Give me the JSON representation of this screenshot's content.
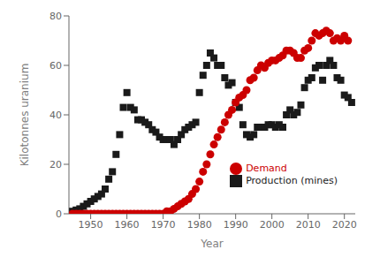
{
  "chart_data": {
    "type": "scatter",
    "xlabel": "Year",
    "ylabel": "Kilotonnes uranium",
    "xlim": [
      1944,
      2023
    ],
    "ylim": [
      0,
      80
    ],
    "xticks": [
      1950,
      1960,
      1970,
      1980,
      1990,
      2000,
      2010,
      2020
    ],
    "yticks": [
      0,
      20,
      40,
      60,
      80
    ],
    "grid": false,
    "legend": "lower right",
    "series": [
      {
        "name": "Production (mines)",
        "color": "#1a1a1a",
        "marker": "square",
        "x": [
          1945,
          1946,
          1947,
          1948,
          1949,
          1950,
          1951,
          1952,
          1953,
          1954,
          1955,
          1956,
          1957,
          1958,
          1959,
          1960,
          1961,
          1962,
          1963,
          1964,
          1965,
          1966,
          1967,
          1968,
          1969,
          1970,
          1971,
          1972,
          1973,
          1974,
          1975,
          1976,
          1977,
          1978,
          1979,
          1980,
          1981,
          1982,
          1983,
          1984,
          1985,
          1986,
          1987,
          1988,
          1989,
          1990,
          1991,
          1992,
          1993,
          1994,
          1995,
          1996,
          1997,
          1998,
          1999,
          2000,
          2001,
          2002,
          2003,
          2004,
          2005,
          2006,
          2007,
          2008,
          2009,
          2010,
          2011,
          2012,
          2013,
          2014,
          2015,
          2016,
          2017,
          2018,
          2019,
          2020,
          2021,
          2022
        ],
        "values": [
          1,
          1.5,
          2,
          3,
          4,
          5,
          6,
          7,
          8,
          10,
          14,
          17,
          24,
          32,
          43,
          49,
          43,
          42,
          38,
          38,
          37,
          36,
          34,
          33,
          31,
          30,
          30,
          30,
          28,
          30,
          32,
          34,
          35,
          36,
          37,
          49,
          56,
          60,
          65,
          63,
          60,
          60,
          55,
          52,
          53,
          45,
          43,
          36,
          32,
          31,
          32,
          35,
          35,
          35,
          36,
          36,
          35,
          36,
          35,
          40,
          42,
          40,
          41,
          44,
          51,
          54,
          55,
          59,
          60,
          54,
          60,
          62,
          60,
          55,
          54,
          48,
          47,
          45
        ]
      },
      {
        "name": "Demand",
        "color": "#cc0000",
        "marker": "circle",
        "x": [
          1945,
          1946,
          1947,
          1948,
          1949,
          1950,
          1951,
          1952,
          1953,
          1954,
          1955,
          1956,
          1957,
          1958,
          1959,
          1960,
          1961,
          1962,
          1963,
          1964,
          1965,
          1966,
          1967,
          1968,
          1969,
          1970,
          1971,
          1972,
          1973,
          1974,
          1975,
          1976,
          1977,
          1978,
          1979,
          1980,
          1981,
          1982,
          1983,
          1984,
          1985,
          1986,
          1987,
          1988,
          1989,
          1990,
          1991,
          1992,
          1993,
          1994,
          1995,
          1996,
          1997,
          1998,
          1999,
          2000,
          2001,
          2002,
          2003,
          2004,
          2005,
          2006,
          2007,
          2008,
          2009,
          2010,
          2011,
          2012,
          2013,
          2014,
          2015,
          2016,
          2017,
          2018,
          2019,
          2020,
          2021
        ],
        "values": [
          0,
          0,
          0,
          0,
          0,
          0,
          0,
          0,
          0,
          0,
          0,
          0,
          0,
          0,
          0,
          0,
          0,
          0,
          0,
          0,
          0,
          0,
          0,
          0,
          0,
          0,
          1,
          1,
          2,
          3,
          4,
          5,
          6,
          8,
          10,
          13,
          17,
          20,
          24,
          28,
          31,
          34,
          37,
          40,
          42,
          45,
          47,
          48,
          50,
          54,
          55,
          58,
          60,
          59,
          61,
          62,
          62,
          63,
          64,
          66,
          66,
          65,
          63,
          63,
          66,
          67,
          70,
          73,
          72,
          73,
          74,
          73,
          70,
          71,
          70,
          72,
          70
        ]
      }
    ]
  }
}
